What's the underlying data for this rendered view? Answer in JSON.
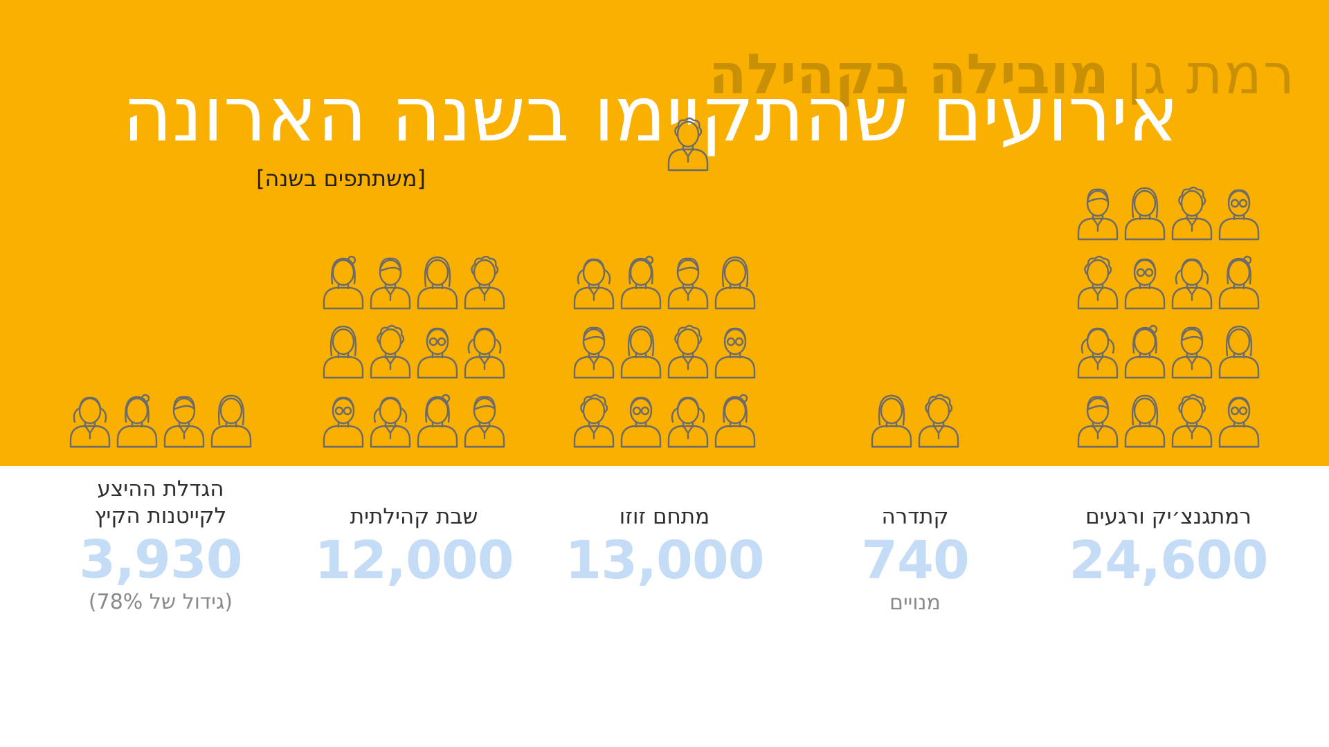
{
  "brand": {
    "part1": "רמת גן",
    "part2": "מובילה בקהילה"
  },
  "title": "אירועים שהתקיימו בשנה הארונה",
  "unit_label": "[משתתפים בשנה]",
  "colors": {
    "band": "#f9b000",
    "icon_stroke": "#6b6b6b",
    "value": "#c5dcf7",
    "title": "#ffffff"
  },
  "chart_data": {
    "type": "pictograph",
    "title": "אירועים שהתקיימו בשנה הארונה",
    "unit": "[משתתפים בשנה]",
    "categories": [
      "רמתגנצ׳יק ורגעים",
      "קתדרה",
      "מתחם זוזו",
      "שבת קהילתית",
      "הגדלת ההיצע לקייטנות הקיץ"
    ],
    "values": [
      24600,
      740,
      13000,
      12000,
      3930
    ],
    "value_labels": [
      "24,600",
      "740",
      "13,000",
      "12,000",
      "3,930"
    ],
    "notes": [
      "",
      "מנויים",
      "",
      "",
      "(גידול של 78%)"
    ],
    "icon_counts": [
      16,
      2,
      13,
      12,
      4
    ]
  },
  "categories": [
    {
      "label": "רמתגנצ׳יק ורגעים",
      "value": "24,600",
      "note": ""
    },
    {
      "label": "קתדרה",
      "value": "740",
      "note": "מנויים"
    },
    {
      "label": "מתחם זוזו",
      "value": "13,000",
      "note": ""
    },
    {
      "label": "שבת קהילתית",
      "value": "12,000",
      "note": ""
    },
    {
      "label": "הגדלת ההיצע לקייטנות הקיץ",
      "value": "3,930",
      "note": "(גידול של 78%)"
    }
  ]
}
